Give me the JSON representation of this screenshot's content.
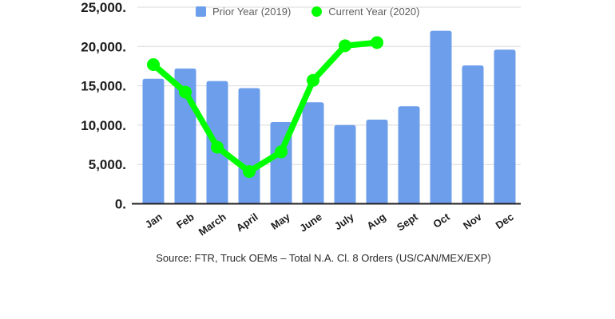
{
  "chart_data": {
    "type": "bar",
    "categories": [
      "Jan",
      "Feb",
      "March",
      "April",
      "May",
      "June",
      "July",
      "Aug",
      "Sept",
      "Oct",
      "Nov",
      "Dec"
    ],
    "series": [
      {
        "name": "Prior Year (2019)",
        "type": "bar",
        "color": "#6d9eeb",
        "values": [
          15900,
          17200,
          15600,
          14700,
          10400,
          12900,
          10000,
          10700,
          12400,
          22000,
          17600,
          19600
        ]
      },
      {
        "name": "Current Year (2020)",
        "type": "line",
        "color": "#00ff00",
        "values": [
          17700,
          14200,
          7200,
          4100,
          6600,
          15700,
          20100,
          20500,
          null,
          null,
          null,
          null
        ]
      }
    ],
    "ylim": [
      0,
      25000
    ],
    "y_ticks": [
      {
        "value": 0,
        "label": "0."
      },
      {
        "value": 5000,
        "label": "5,000."
      },
      {
        "value": 10000,
        "label": "10,000."
      },
      {
        "value": 15000,
        "label": "15,000."
      },
      {
        "value": 20000,
        "label": "20,000."
      },
      {
        "value": 25000,
        "label": "25,000."
      }
    ],
    "grid": "horizontal",
    "grid_color": "#d9d9d9",
    "axis_color": "#212121",
    "legend_position": "top",
    "source_note": "Source: FTR, Truck OEMs – Total N.A. Cl. 8 Orders (US/CAN/MEX/EXP)"
  }
}
